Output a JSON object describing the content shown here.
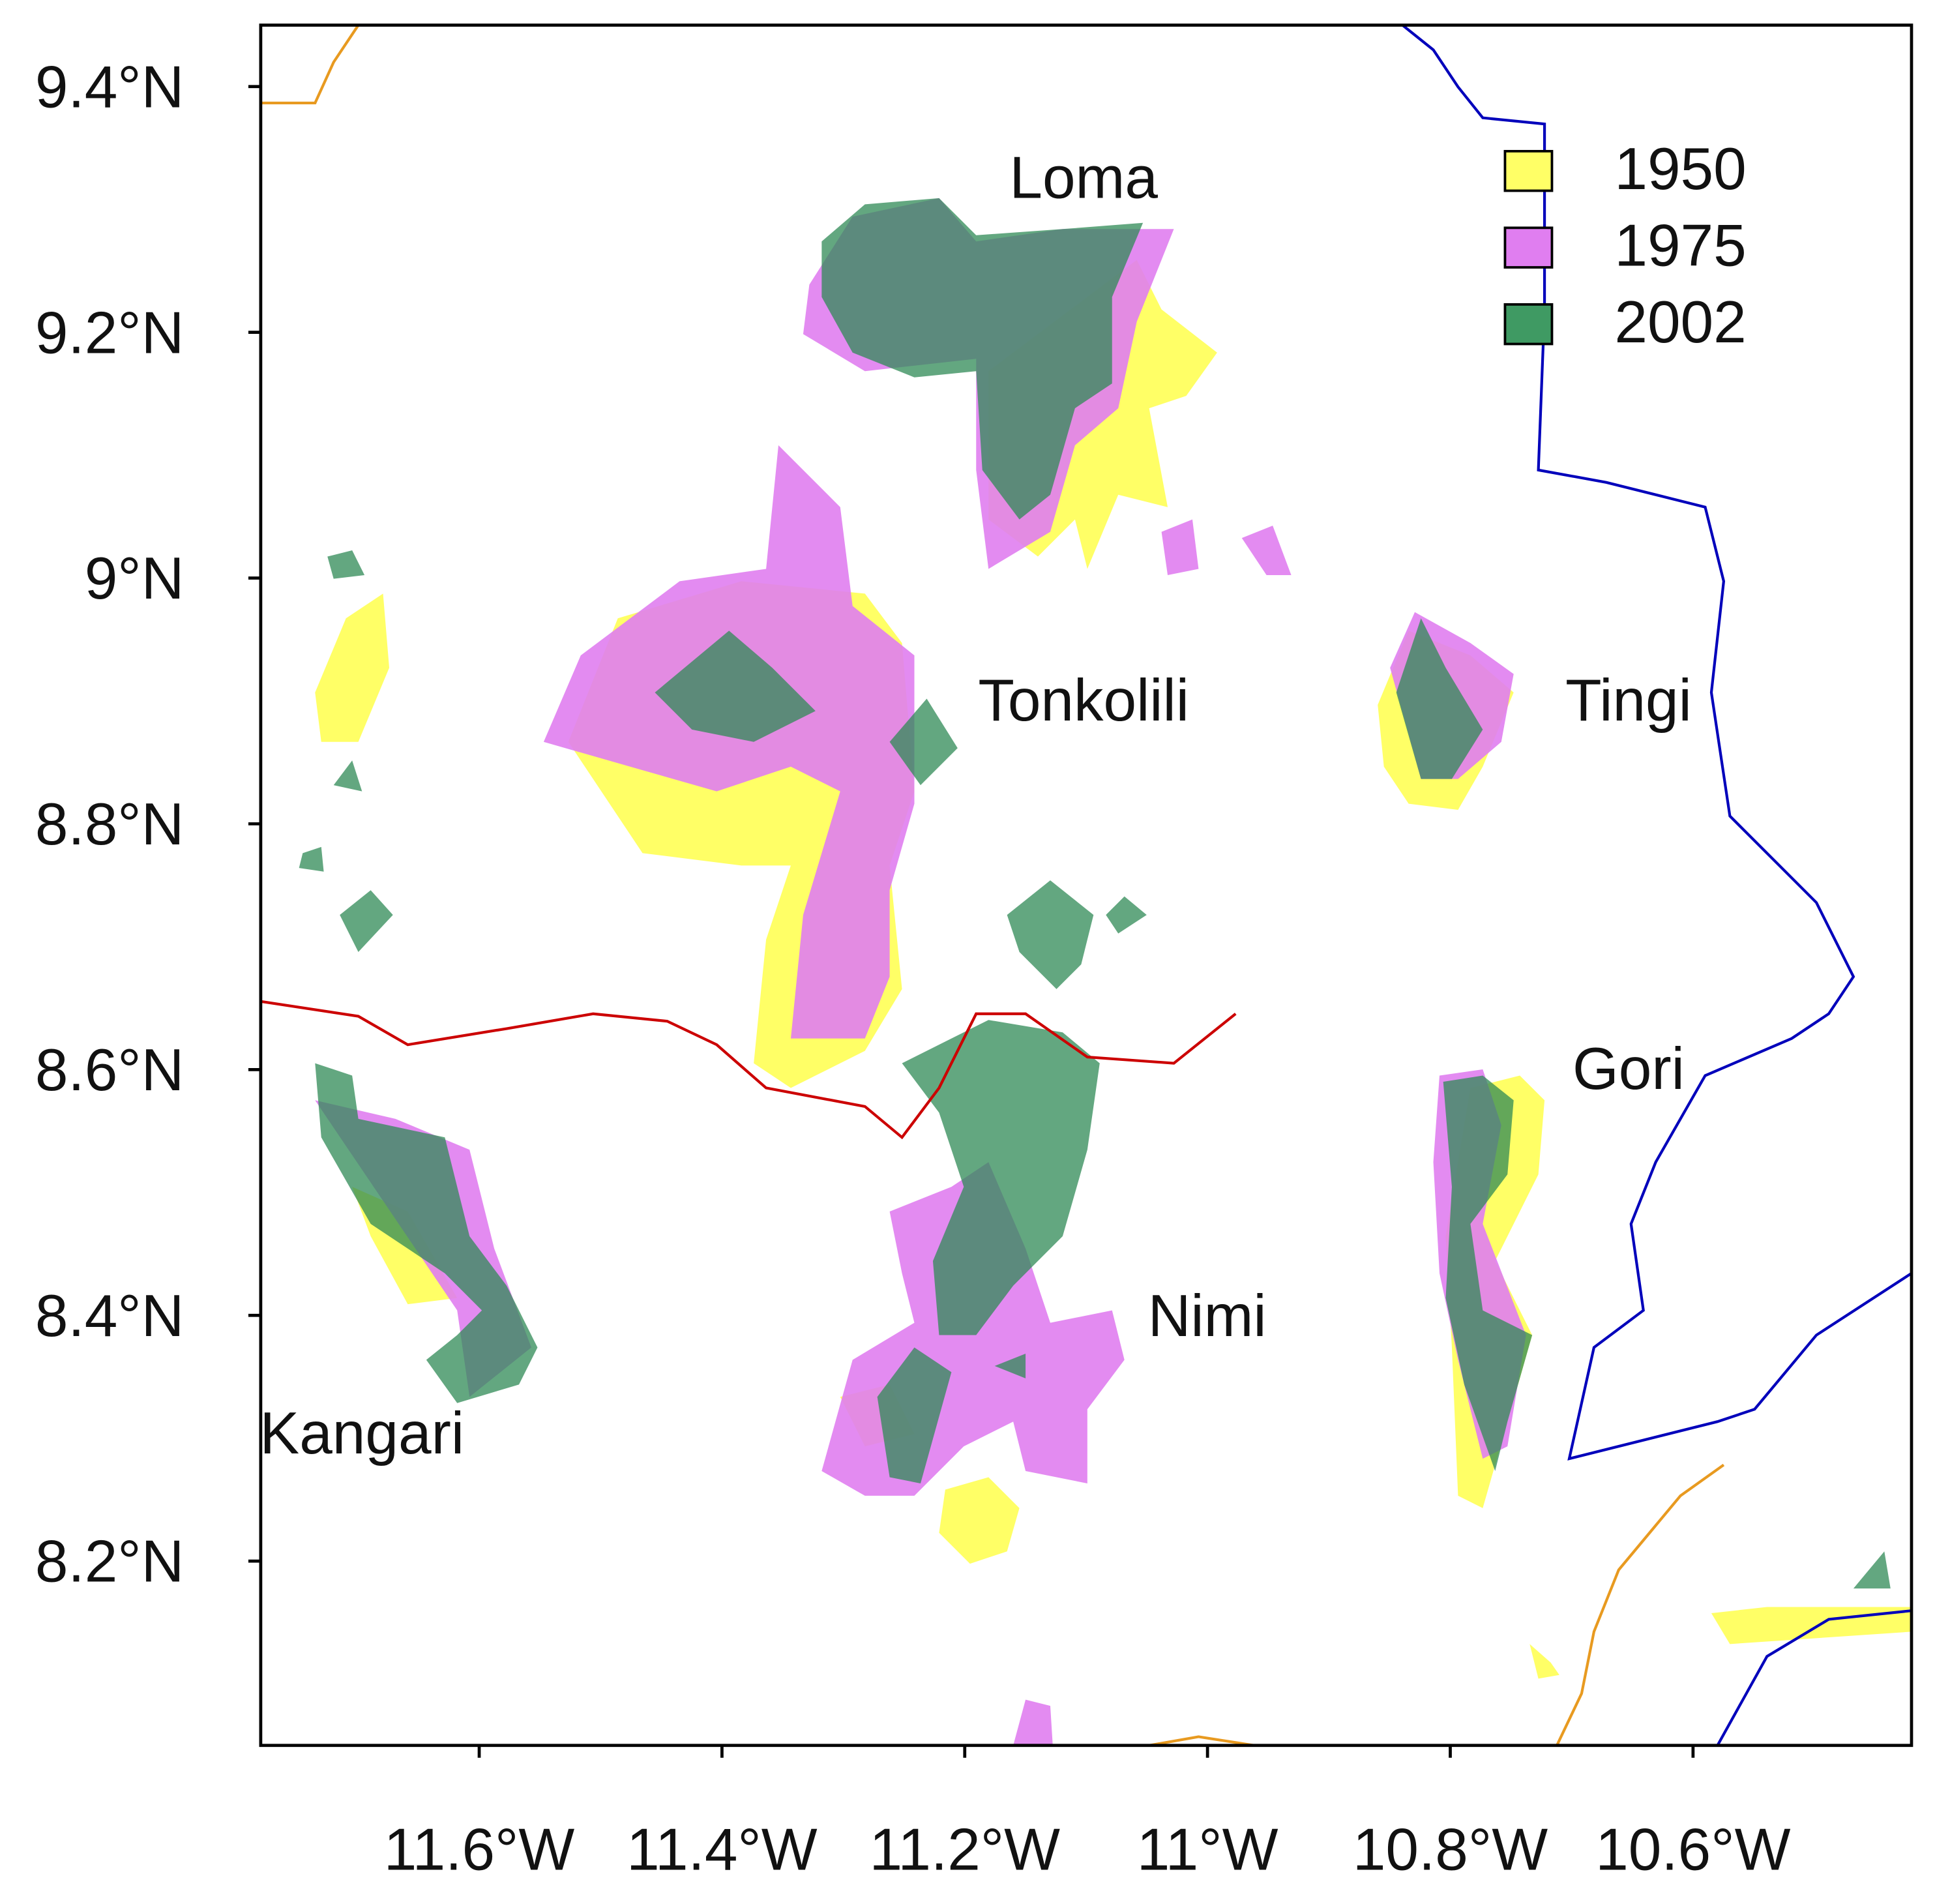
{
  "map": {
    "xlim": [
      -11.78,
      -10.42
    ],
    "ylim": [
      8.05,
      9.45
    ],
    "xticks": [
      {
        "value": -11.6,
        "label": "11.6°W"
      },
      {
        "value": -11.4,
        "label": "11.4°W"
      },
      {
        "value": -11.2,
        "label": "11.2°W"
      },
      {
        "value": -11.0,
        "label": "11°W"
      },
      {
        "value": -10.8,
        "label": "10.8°W"
      },
      {
        "value": -10.6,
        "label": "10.6°W"
      }
    ],
    "yticks": [
      {
        "value": 9.4,
        "label": "9.4°N"
      },
      {
        "value": 9.2,
        "label": "9.2°N"
      },
      {
        "value": 9.0,
        "label": "9°N"
      },
      {
        "value": 8.8,
        "label": "8.8°N"
      },
      {
        "value": 8.6,
        "label": "8.6°N"
      },
      {
        "value": 8.4,
        "label": "8.4°N"
      },
      {
        "value": 8.2,
        "label": "8.2°N"
      }
    ],
    "legend": [
      {
        "name": "1950",
        "color": "#ffff66"
      },
      {
        "name": "1975",
        "color": "#e07ef0"
      },
      {
        "name": "2002",
        "color": "#3f9a63"
      }
    ],
    "regions": [
      "Loma",
      "Tonkolili",
      "Tingi",
      "Gori",
      "Nimi",
      "Kangari"
    ]
  }
}
